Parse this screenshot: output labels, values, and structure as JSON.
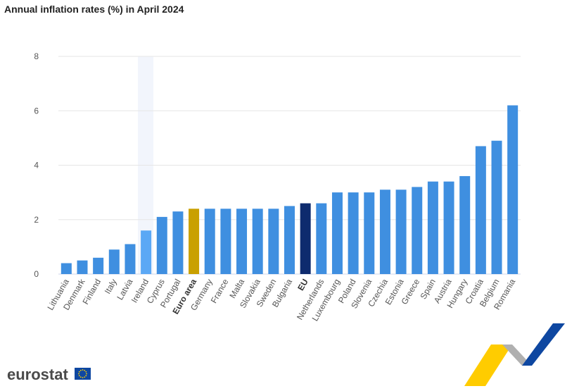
{
  "chart_data": {
    "type": "bar",
    "title": "Annual inflation rates (%) in April 2024",
    "categories": [
      "Lithuania",
      "Denmark",
      "Finland",
      "Italy",
      "Latvia",
      "Ireland",
      "Cyprus",
      "Portugal",
      "Euro area",
      "Germany",
      "France",
      "Malta",
      "Slovakia",
      "Sweden",
      "Bulgaria",
      "EU",
      "Netherlands",
      "Luxembourg",
      "Poland",
      "Slovenia",
      "Czechia",
      "Estonia",
      "Greece",
      "Spain",
      "Austria",
      "Hungary",
      "Croatia",
      "Belgium",
      "Romania"
    ],
    "values": [
      0.4,
      0.5,
      0.6,
      0.9,
      1.1,
      1.6,
      2.1,
      2.3,
      2.4,
      2.4,
      2.4,
      2.4,
      2.4,
      2.4,
      2.5,
      2.6,
      2.6,
      3.0,
      3.0,
      3.0,
      3.1,
      3.1,
      3.2,
      3.4,
      3.4,
      3.6,
      4.7,
      4.9,
      6.2
    ],
    "color": "#3f8fe0",
    "colors": [
      "#3f8fe0",
      "#3f8fe0",
      "#3f8fe0",
      "#3f8fe0",
      "#3f8fe0",
      "#5ba8f5",
      "#3f8fe0",
      "#3f8fe0",
      "#c9a000",
      "#3f8fe0",
      "#3f8fe0",
      "#3f8fe0",
      "#3f8fe0",
      "#3f8fe0",
      "#3f8fe0",
      "#0e2b6e",
      "#3f8fe0",
      "#3f8fe0",
      "#3f8fe0",
      "#3f8fe0",
      "#3f8fe0",
      "#3f8fe0",
      "#3f8fe0",
      "#3f8fe0",
      "#3f8fe0",
      "#3f8fe0",
      "#3f8fe0",
      "#3f8fe0",
      "#3f8fe0"
    ],
    "ylim": [
      0,
      8
    ],
    "yticks": [
      0,
      2,
      4,
      6,
      8
    ],
    "grid": true
  },
  "branding": {
    "logo": "eurostat"
  }
}
